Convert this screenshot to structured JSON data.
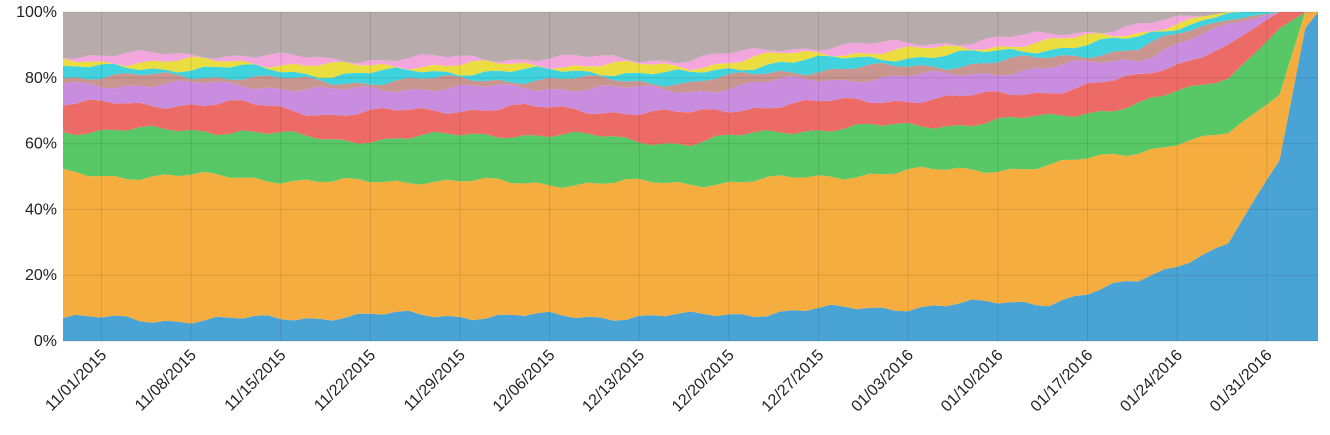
{
  "chart_data": {
    "type": "area",
    "stacked": true,
    "normalized": true,
    "grid": true,
    "legend": "none",
    "title": "",
    "xlabel": "",
    "ylabel": "",
    "ylim": [
      0,
      100
    ],
    "y_ticks": [
      "0%",
      "20%",
      "40%",
      "60%",
      "80%",
      "100%"
    ],
    "x_tick_labels": [
      "11/01/2015",
      "11/08/2015",
      "11/15/2015",
      "11/22/2015",
      "11/29/2015",
      "12/06/2015",
      "12/13/2015",
      "12/20/2015",
      "12/27/2015",
      "01/03/2016",
      "01/10/2016",
      "01/17/2016",
      "01/24/2016",
      "01/31/2016"
    ],
    "first_date": "10/29/2015",
    "last_date": "02/04/2016",
    "anchor_days": [
      0,
      7,
      14,
      21,
      28,
      35,
      42,
      49,
      56,
      63,
      70,
      77,
      84,
      91,
      95,
      97,
      98
    ],
    "cumulative_top_anchors": [
      [
        7,
        6.5,
        6.5,
        7.5,
        8,
        7.5,
        7.5,
        7.5,
        9,
        10,
        11,
        12,
        18,
        30,
        55,
        95,
        100
      ],
      [
        51,
        50,
        50,
        48,
        49,
        48,
        48,
        48,
        49,
        51,
        52,
        53,
        58,
        63,
        75,
        100,
        100
      ],
      [
        64,
        64,
        64,
        61,
        62,
        63,
        62,
        60,
        64,
        65,
        66,
        68,
        72,
        80,
        95,
        100,
        100
      ],
      [
        72,
        72,
        72,
        69,
        70,
        71,
        70,
        69,
        72,
        73,
        74,
        76,
        80,
        90,
        100,
        100,
        100
      ],
      [
        78,
        78,
        78,
        76,
        77,
        77,
        77,
        76,
        79,
        80,
        81,
        83,
        86,
        96,
        100,
        100,
        100
      ],
      [
        80.5,
        80.5,
        80.5,
        78.5,
        79.5,
        79.5,
        79.5,
        78.5,
        82,
        83,
        84,
        86,
        89,
        98,
        100,
        100,
        100
      ],
      [
        83,
        83,
        83,
        81,
        82,
        82,
        82,
        81,
        85,
        86,
        87,
        89,
        92,
        100,
        100,
        100,
        100
      ],
      [
        85,
        85,
        85,
        83.5,
        84,
        84,
        84,
        83.5,
        87,
        88,
        89,
        91,
        94,
        100,
        100,
        100,
        100
      ],
      [
        87,
        87,
        87,
        85.5,
        86,
        86,
        86,
        85.5,
        89,
        90,
        91,
        93,
        96,
        100,
        100,
        100,
        100
      ],
      [
        100,
        100,
        100,
        100,
        100,
        100,
        100,
        100,
        100,
        100,
        100,
        100,
        100,
        100,
        100,
        100,
        100
      ]
    ],
    "series_colors": [
      "#4aa3d5",
      "#f5ad3f",
      "#58c766",
      "#ec6b66",
      "#c98de0",
      "#c8958f",
      "#40d3dd",
      "#e9dd40",
      "#f2a6dd",
      "#b7abab"
    ]
  }
}
